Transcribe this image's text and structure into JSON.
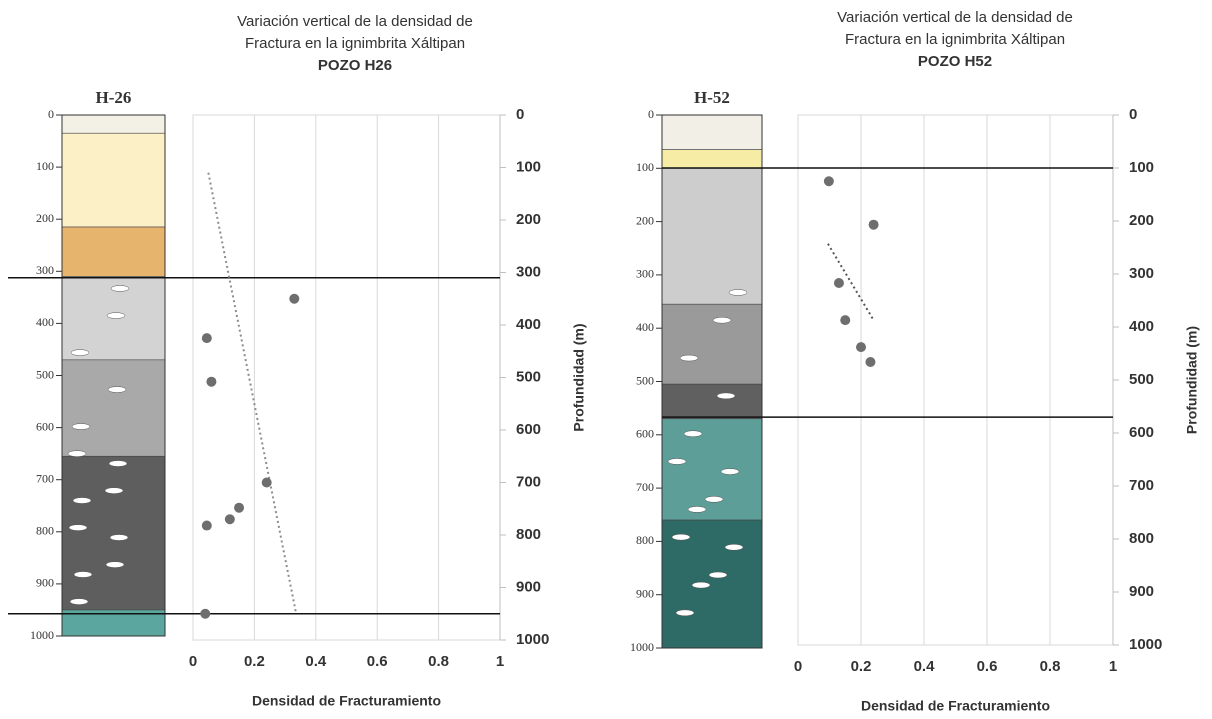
{
  "chart_data": [
    {
      "type": "scatter",
      "title_lines": [
        "Variación vertical de la densidad de",
        "Fractura en la ignimbrita Xáltipan"
      ],
      "subtitle": "POZO H26",
      "x_label": "Densidad de Fracturamiento",
      "y_label": "Profundidad (m)",
      "xlim": [
        0,
        1
      ],
      "ylim": [
        0,
        1000
      ],
      "xticks": [
        0,
        0.2,
        0.4,
        0.6,
        0.8,
        1
      ],
      "yticks": [
        0,
        100,
        200,
        300,
        400,
        500,
        600,
        700,
        800,
        900,
        1000
      ],
      "grid": true,
      "series": [
        {
          "color": "#6e6e6e",
          "x": [
            0.33,
            0.045,
            0.06,
            0.24,
            0.15,
            0.12,
            0.045,
            0.04
          ],
          "values": [
            350,
            425,
            508,
            700,
            748,
            770,
            782,
            950
          ]
        }
      ],
      "trend": {
        "color": "#8c8c8c",
        "x": [
          0.05,
          0.335
        ],
        "values": [
          110,
          947
        ]
      },
      "hlines": [
        310,
        950
      ],
      "column": {
        "label": "H-26",
        "ticks": [
          0,
          100,
          200,
          300,
          400,
          500,
          600,
          700,
          800,
          900,
          1000
        ]
      }
    },
    {
      "type": "scatter",
      "title_lines": [
        "Variación vertical de la densidad de",
        "Fractura en la ignimbrita Xáltipan"
      ],
      "subtitle": "POZO H52",
      "x_label": "Densidad de Fracturamiento",
      "y_label": "Profundidad (m)",
      "xlim": [
        0,
        1
      ],
      "ylim": [
        0,
        1000
      ],
      "xticks": [
        0,
        0.2,
        0.4,
        0.6,
        0.8,
        1
      ],
      "yticks": [
        0,
        100,
        200,
        300,
        400,
        500,
        600,
        700,
        800,
        900,
        1000
      ],
      "grid": true,
      "series": [
        {
          "color": "#6e6e6e",
          "x": [
            0.098,
            0.24,
            0.13,
            0.15,
            0.2,
            0.23
          ],
          "values": [
            125,
            207,
            317,
            387,
            438,
            466
          ]
        }
      ],
      "trend": {
        "color": "#555555",
        "x": [
          0.095,
          0.24
        ],
        "values": [
          243,
          387
        ]
      },
      "hlines": [
        100,
        570
      ],
      "column": {
        "label": "H-52",
        "ticks": [
          0,
          100,
          200,
          300,
          400,
          500,
          600,
          700,
          800,
          900,
          1000
        ]
      }
    }
  ]
}
